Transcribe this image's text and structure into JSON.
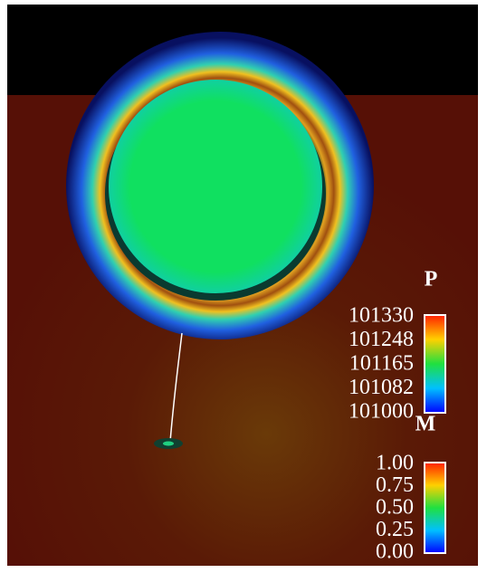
{
  "legends": [
    {
      "title": "P",
      "ticks": [
        "101330",
        "101248",
        "101165",
        "101082",
        "101000"
      ]
    },
    {
      "title": "M",
      "ticks": [
        "1.00",
        "0.75",
        "0.50",
        "0.25",
        "0.00"
      ]
    }
  ]
}
